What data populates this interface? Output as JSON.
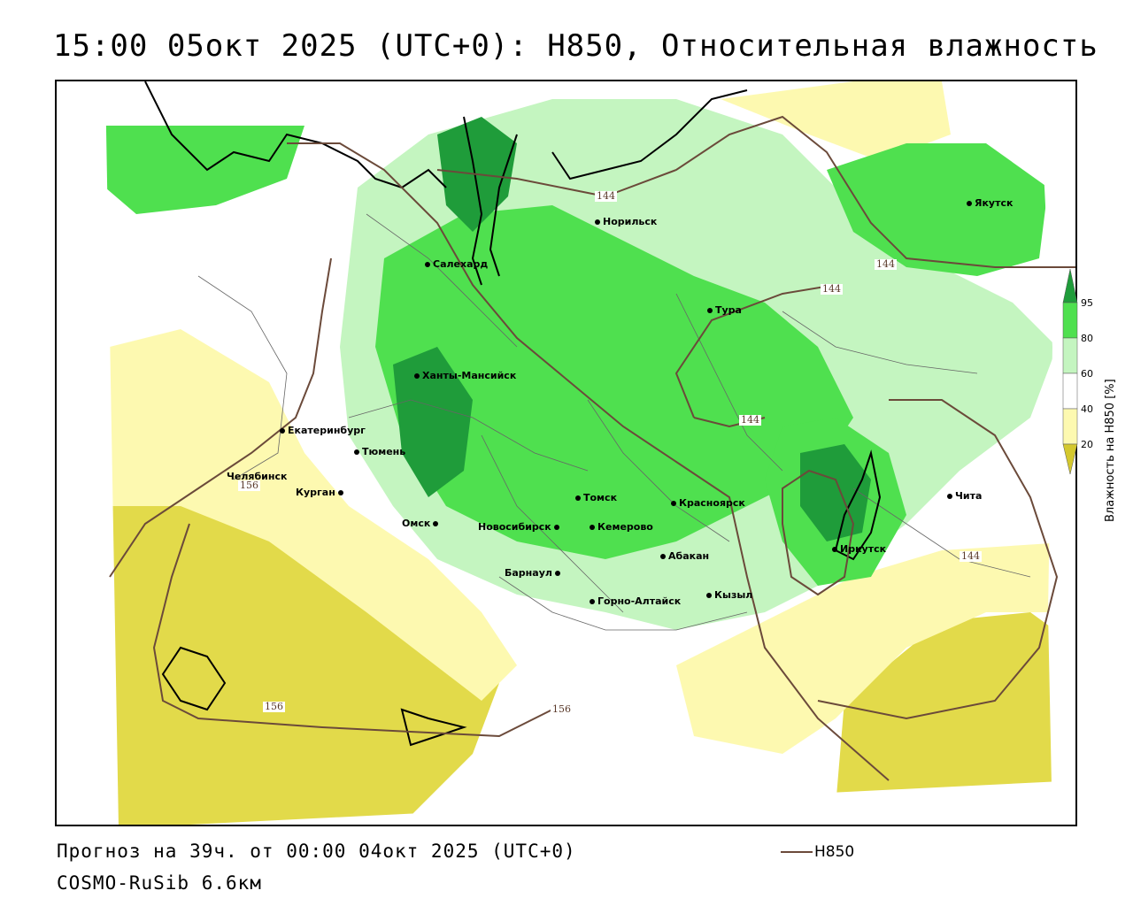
{
  "title": "15:00 05окт 2025 (UTC+0): H850, Относительная влажность",
  "footer": {
    "forecast": "Прогноз на 39ч. от 00:00 04окт 2025 (UTC+0)",
    "model": "COSMO-RuSib 6.6км",
    "line_legend": "H850"
  },
  "legend": {
    "title": "Влажность на H850 [%]",
    "ticks": [
      "95",
      "80",
      "60",
      "40",
      "20"
    ],
    "colors": {
      "very_dry": "#d4c82e",
      "dry": "#e2da4a",
      "light_dry": "#fdf9b0",
      "neutral": "#ffffff",
      "light_green": "#c4f5c0",
      "green": "#4fe04f",
      "dark_green": "#1f9c3a"
    }
  },
  "cities": [
    {
      "name": "Якутск"
    },
    {
      "name": "Норильск"
    },
    {
      "name": "Салехард"
    },
    {
      "name": "Тура"
    },
    {
      "name": "Ханты-Мансийск"
    },
    {
      "name": "Екатеринбург"
    },
    {
      "name": "Тюмень"
    },
    {
      "name": "Челябинск"
    },
    {
      "name": "Курган"
    },
    {
      "name": "Омск"
    },
    {
      "name": "Новосибирск"
    },
    {
      "name": "Томск"
    },
    {
      "name": "Кемерово"
    },
    {
      "name": "Красноярск"
    },
    {
      "name": "Абакан"
    },
    {
      "name": "Барнаул"
    },
    {
      "name": "Горно-Алтайск"
    },
    {
      "name": "Кызыл"
    },
    {
      "name": "Иркутск"
    },
    {
      "name": "Чита"
    }
  ],
  "isolines": [
    {
      "value": "144"
    },
    {
      "value": "144"
    },
    {
      "value": "144"
    },
    {
      "value": "144"
    },
    {
      "value": "144"
    },
    {
      "value": "156"
    },
    {
      "value": "156"
    },
    {
      "value": "156"
    }
  ]
}
